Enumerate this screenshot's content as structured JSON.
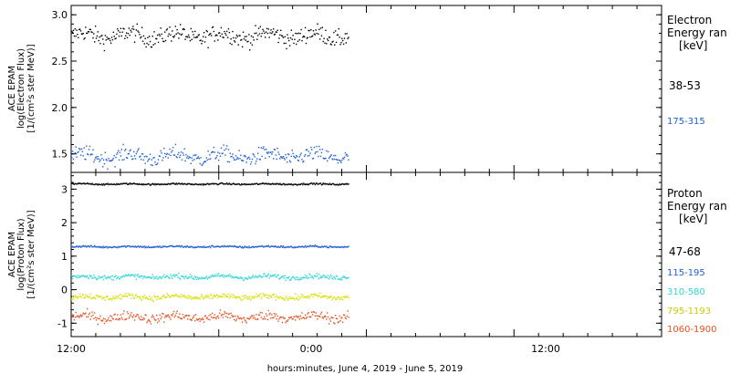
{
  "xlabel": "hours:minutes, June  4, 2019 - June  5, 2019",
  "x_ticks": [
    "12:00",
    "0:00",
    "12:00"
  ],
  "chart_data": [
    {
      "type": "scatter",
      "ylabel": [
        "ACE EPAM",
        "log(Electron Flux)",
        "[1/(cm²s ster MeV)]"
      ],
      "ylim": [
        1.3,
        3.1
      ],
      "y_ticks": [
        "1.5",
        "2.0",
        "2.5",
        "3.0"
      ],
      "y_tick_values": [
        1.5,
        2.0,
        2.5,
        3.0
      ],
      "legend_title": [
        "Electron",
        "Energy ran",
        "[keV]"
      ],
      "x_range_hours": [
        12,
        60
      ],
      "data_range_hours": [
        12,
        34.5
      ],
      "series": [
        {
          "name": "38-53",
          "color": "#000000",
          "mean": 2.78,
          "spread": 0.08
        },
        {
          "name": "175-315",
          "color": "#1f5fd6",
          "mean": 1.48,
          "spread": 0.07
        }
      ]
    },
    {
      "type": "scatter",
      "ylabel": [
        "ACE EPAM",
        "log(Proton Flux)",
        "[1/(cm²s ster MeV)]"
      ],
      "ylim": [
        -1.4,
        3.5
      ],
      "y_ticks": [
        "-1",
        "0",
        "1",
        "2",
        "3"
      ],
      "y_tick_values": [
        -1,
        0,
        1,
        2,
        3
      ],
      "legend_title": [
        "Proton",
        "Energy ran",
        "[keV]"
      ],
      "x_range_hours": [
        12,
        60
      ],
      "data_range_hours": [
        12,
        34.5
      ],
      "series": [
        {
          "name": "47-68",
          "color": "#000000",
          "mean": 3.17,
          "spread": 0.02
        },
        {
          "name": "115-195",
          "color": "#1f5fd6",
          "mean": 1.3,
          "spread": 0.025
        },
        {
          "name": "310-580",
          "color": "#2fd6d6",
          "mean": 0.4,
          "spread": 0.06
        },
        {
          "name": "795-1193",
          "color": "#d6e000",
          "mean": -0.2,
          "spread": 0.07
        },
        {
          "name": "1060-1900",
          "color": "#e8501e",
          "mean": -0.8,
          "spread": 0.12
        }
      ]
    }
  ]
}
